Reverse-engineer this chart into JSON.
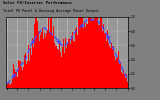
{
  "title": "Total PV Panel & Running Average Power Output",
  "subtitle": "Solar PV/Inverter Performance",
  "bg_color": "#808080",
  "plot_bg": "#989898",
  "bar_color": "#ff0000",
  "avg_color": "#4444ff",
  "grid_color": "#ffffff",
  "num_points": 130,
  "ylim": [
    0,
    1
  ],
  "title_fontsize": 3.5,
  "subtitle_fontsize": 3.5
}
